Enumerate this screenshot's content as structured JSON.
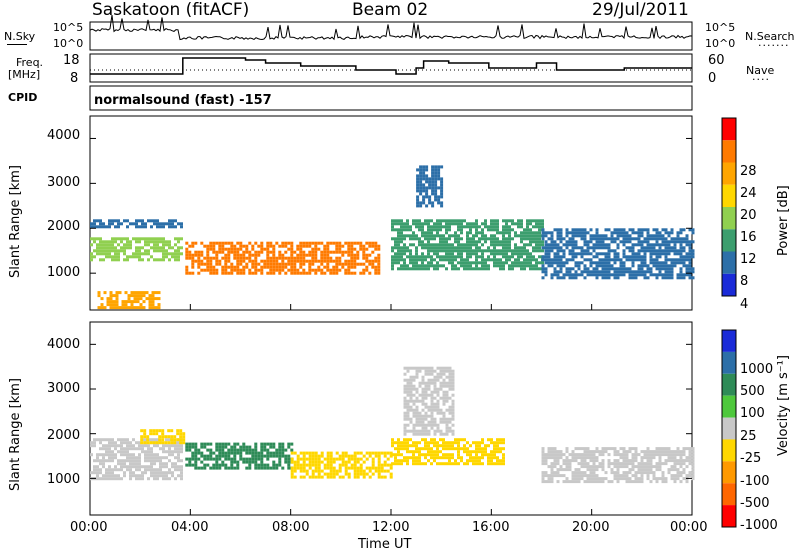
{
  "header": {
    "station": "Saskatoon (fitACF)",
    "beam": "Beam 02",
    "date": "29/Jul/2011"
  },
  "top_panels": {
    "nsky_label": "N.Sky",
    "nsky_scale_top": "10^5",
    "nsky_scale_bottom": "10^0",
    "nsearch_label": "N.Search",
    "nsearch_scale_top": "10^5",
    "nsearch_scale_bottom": "10^0",
    "freq_label_line1": "Freq.",
    "freq_label_line2": "[MHz]",
    "freq_ticks": [
      "18",
      "8"
    ],
    "nave_label": "Nave",
    "nave_ticks": [
      "60",
      "0"
    ],
    "cpid_label": "CPID",
    "cpid_text": "normalsound (fast) -157"
  },
  "power_colorbar": {
    "label": "Power [dB]",
    "ticks": [
      "28",
      "24",
      "20",
      "16",
      "12",
      "8",
      "4"
    ],
    "colors": [
      "#ff0000",
      "#ff7a00",
      "#ffa500",
      "#ffd700",
      "#90d050",
      "#3c9e6e",
      "#2c6fa8",
      "#1a2bd8"
    ]
  },
  "velocity_colorbar": {
    "label": "Velocity [m s⁻¹]",
    "ticks": [
      "1000",
      "500",
      "100",
      "25",
      "-25",
      "-100",
      "-500",
      "-1000"
    ],
    "colors": [
      "#1a2bd8",
      "#2c6fa8",
      "#2e8b57",
      "#4ec83c",
      "#c8c8c8",
      "#ffd700",
      "#ff9900",
      "#ff6600",
      "#ff0000"
    ]
  },
  "chart_data": [
    {
      "type": "heatmap",
      "name": "power",
      "title": "",
      "xlabel": "",
      "ylabel": "Slant Range [km]",
      "xlim": [
        "00:00",
        "24:00"
      ],
      "ylim": [
        180,
        4500
      ],
      "yticks": [
        "4000",
        "3000",
        "2000",
        "1000"
      ],
      "colorbar": "Power [dB]",
      "regions": [
        {
          "t0": 0.0,
          "t1": 3.7,
          "r0": 1300,
          "r1": 1800,
          "value": 16
        },
        {
          "t0": 0.0,
          "t1": 3.7,
          "r0": 2000,
          "r1": 2200,
          "value": 8
        },
        {
          "t0": 0.3,
          "t1": 2.8,
          "r0": 250,
          "r1": 600,
          "value": 24
        },
        {
          "t0": 3.8,
          "t1": 11.5,
          "r0": 1000,
          "r1": 1700,
          "value": 28
        },
        {
          "t0": 12.0,
          "t1": 18.0,
          "r0": 1100,
          "r1": 2200,
          "value": 12
        },
        {
          "t0": 13.0,
          "t1": 14.0,
          "r0": 2500,
          "r1": 3400,
          "value": 8
        },
        {
          "t0": 18.0,
          "t1": 24.0,
          "r0": 900,
          "r1": 2000,
          "value": 8
        }
      ]
    },
    {
      "type": "heatmap",
      "name": "velocity",
      "title": "",
      "xlabel": "Time UT",
      "ylabel": "Slant Range [km]",
      "xlim": [
        "00:00",
        "24:00"
      ],
      "ylim": [
        180,
        4500
      ],
      "xticks": [
        "00:00",
        "04:00",
        "08:00",
        "12:00",
        "16:00",
        "20:00",
        "00:00"
      ],
      "yticks": [
        "4000",
        "3000",
        "2000",
        "1000"
      ],
      "colorbar": "Velocity [m s⁻¹]",
      "regions": [
        {
          "t0": 0.0,
          "t1": 3.7,
          "r0": 1000,
          "r1": 1900,
          "value": 0
        },
        {
          "t0": 2.0,
          "t1": 3.7,
          "r0": 1800,
          "r1": 2100,
          "value": -100
        },
        {
          "t0": 3.8,
          "t1": 8.0,
          "r0": 1200,
          "r1": 1800,
          "value": 100
        },
        {
          "t0": 8.0,
          "t1": 12.0,
          "r0": 1000,
          "r1": 1600,
          "value": -100
        },
        {
          "t0": 12.0,
          "t1": 16.5,
          "r0": 1300,
          "r1": 1900,
          "value": -100
        },
        {
          "t0": 12.5,
          "t1": 14.5,
          "r0": 2000,
          "r1": 3500,
          "value": 0
        },
        {
          "t0": 18.0,
          "t1": 24.0,
          "r0": 900,
          "r1": 1700,
          "value": 0
        }
      ]
    }
  ]
}
